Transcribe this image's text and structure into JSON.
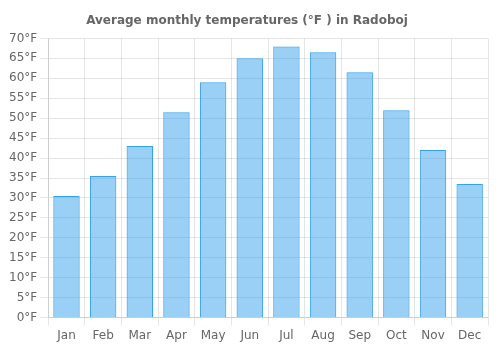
{
  "chart_data": {
    "type": "bar",
    "title": "Average monthly temperatures (°F ) in Radoboj",
    "categories": [
      "Jan",
      "Feb",
      "Mar",
      "Apr",
      "May",
      "Jun",
      "Jul",
      "Aug",
      "Sep",
      "Oct",
      "Nov",
      "Dec"
    ],
    "values": [
      30.5,
      35.5,
      43,
      51.5,
      59,
      65,
      68,
      66.5,
      61.5,
      52,
      42,
      33.5
    ],
    "ylim": [
      0,
      70
    ],
    "yticks": [
      {
        "value": 0,
        "label": "0°F"
      },
      {
        "value": 5,
        "label": "5°F"
      },
      {
        "value": 10,
        "label": "10°F"
      },
      {
        "value": 15,
        "label": "15°F"
      },
      {
        "value": 20,
        "label": "20°F"
      },
      {
        "value": 25,
        "label": "25°F"
      },
      {
        "value": 30,
        "label": "30°F"
      },
      {
        "value": 35,
        "label": "35°F"
      },
      {
        "value": 40,
        "label": "40°F"
      },
      {
        "value": 45,
        "label": "45°F"
      },
      {
        "value": 50,
        "label": "50°F"
      },
      {
        "value": 55,
        "label": "55°F"
      },
      {
        "value": 60,
        "label": "60°F"
      },
      {
        "value": 65,
        "label": "65°F"
      },
      {
        "value": 70,
        "label": "70°F"
      }
    ],
    "grid": true
  }
}
